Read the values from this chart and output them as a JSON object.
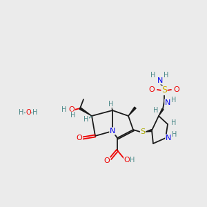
{
  "bg_color": "#ebebeb",
  "colors": {
    "C": "#1a1a1a",
    "N": "#0000ee",
    "O": "#ee0000",
    "S_sulfonyl": "#ccaa00",
    "S_thio": "#aaaa00",
    "H": "#4a8888",
    "bond": "#1a1a1a"
  },
  "figsize": [
    3.0,
    3.0
  ],
  "dpi": 100
}
